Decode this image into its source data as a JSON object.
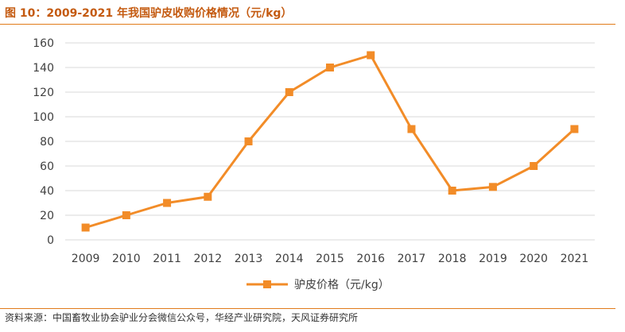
{
  "figure_title": "图 10：2009-2021 年我国驴皮收购价格情况（元/kg）",
  "source": "资料来源：中国畜牧业协会驴业分会微信公众号，华经产业研究院，天风证券研究所",
  "colors": {
    "accent": "#e07b1a",
    "line": "#f28c28",
    "grid": "#d9d9d9"
  },
  "chart_data": {
    "type": "line",
    "title": "",
    "xlabel": "",
    "ylabel": "",
    "categories": [
      "2009",
      "2010",
      "2011",
      "2012",
      "2013",
      "2014",
      "2015",
      "2016",
      "2017",
      "2018",
      "2019",
      "2020",
      "2021"
    ],
    "series": [
      {
        "name": "驴皮价格（元/kg）",
        "values": [
          10,
          20,
          30,
          35,
          80,
          120,
          140,
          150,
          90,
          40,
          43,
          60,
          90
        ]
      }
    ],
    "ylim": [
      0,
      160
    ],
    "yticks": [
      "0",
      "20",
      "40",
      "60",
      "80",
      "100",
      "120",
      "140",
      "160"
    ],
    "grid": true,
    "legend": "bottom"
  }
}
